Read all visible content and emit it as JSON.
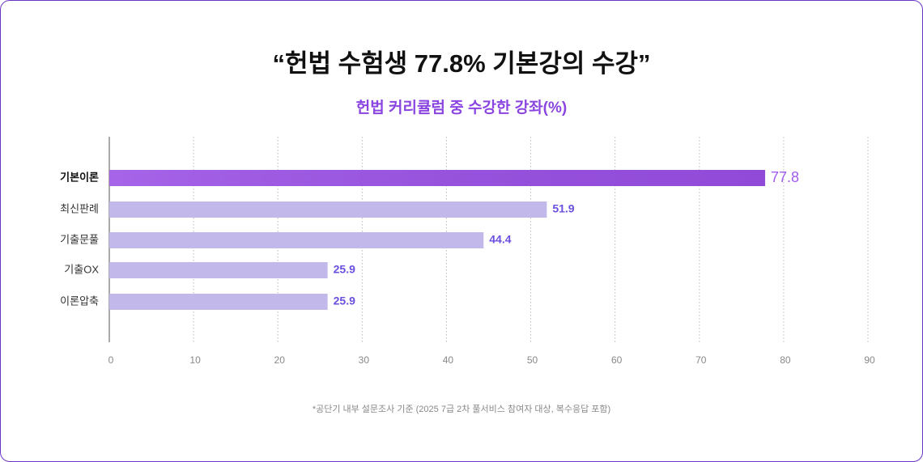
{
  "chart_data": {
    "type": "bar",
    "orientation": "horizontal",
    "title": "“헌법 수험생 77.8% 기본강의 수강”",
    "subtitle": "헌법 커리큘럼 중 수강한 강좌(%)",
    "categories": [
      "기본이론",
      "최신판례",
      "기출문풀",
      "기출OX",
      "이론압축"
    ],
    "values": [
      77.8,
      51.9,
      44.4,
      25.9,
      25.9
    ],
    "colors": [
      "#9a4fe6",
      "#c2b8ea",
      "#c2b8ea",
      "#c2b8ea",
      "#c2b8ea"
    ],
    "xlim": [
      0,
      90
    ],
    "xticks": [
      0,
      10,
      20,
      30,
      40,
      50,
      60,
      70,
      80,
      90
    ],
    "grid": true,
    "note": "*공단기 내부 설문조사 기준 (2025 7급 2차 풀서비스 참여자 대상, 복수응답 포함)"
  }
}
